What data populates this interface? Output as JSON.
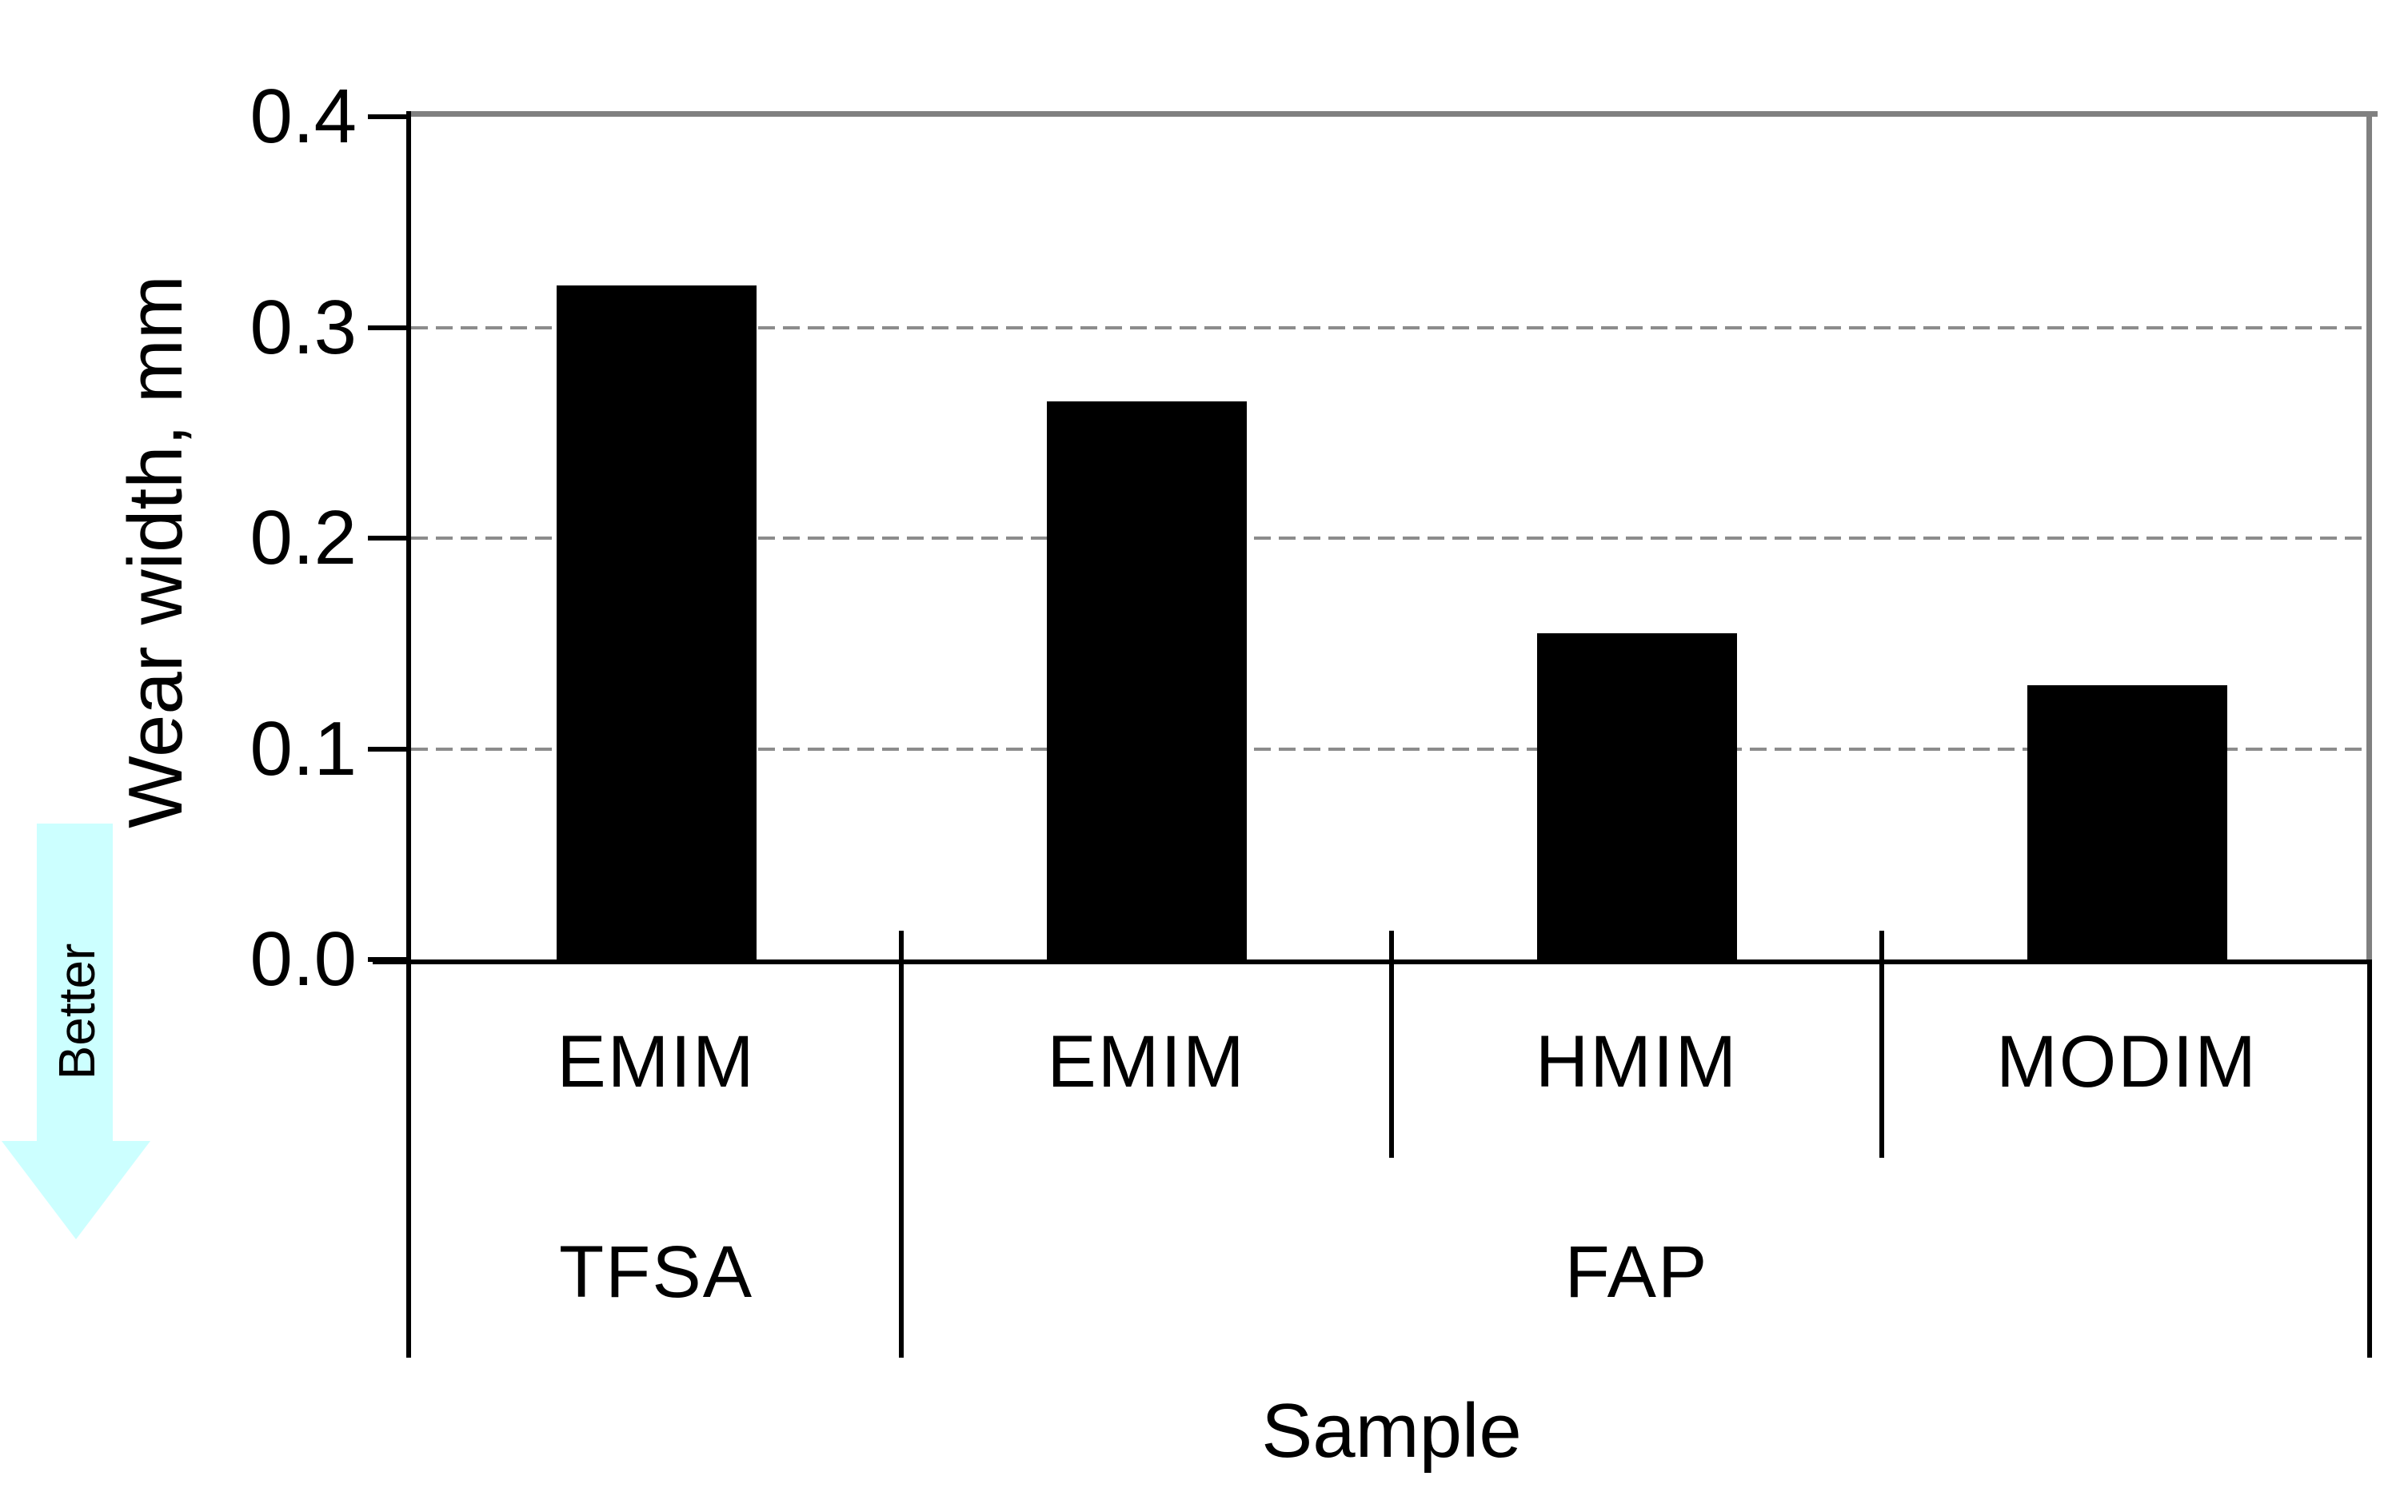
{
  "chart_data": {
    "type": "bar",
    "title": "",
    "xlabel": "Sample",
    "ylabel": "Wear width, mm",
    "ylim": [
      0.0,
      0.4
    ],
    "ytick_labels": [
      "0.0",
      "0.1",
      "0.2",
      "0.3",
      "0.4"
    ],
    "ytick_values": [
      0.0,
      0.1,
      0.2,
      0.3,
      0.4
    ],
    "gridline_values": [
      0.1,
      0.2,
      0.3
    ],
    "grid_style": "dashed horizontal gray",
    "legend": "none",
    "categories": [
      "EMIM",
      "EMIM",
      "HMIM",
      "MODIM"
    ],
    "values": [
      0.32,
      0.265,
      0.155,
      0.13
    ],
    "series_name": "Wear width",
    "groups": [
      {
        "label": "TFSA",
        "start": 0,
        "end": 0
      },
      {
        "label": "FAP",
        "start": 1,
        "end": 3
      }
    ],
    "annotation": {
      "label": "Better",
      "direction": "down"
    }
  },
  "colors": {
    "bar": "#000000",
    "axis": "#000000",
    "gridline": "#8c8c8c",
    "plot_border": "#808080",
    "arrow_fill": "#ccffff",
    "text": "#000000",
    "background": "#ffffff"
  }
}
